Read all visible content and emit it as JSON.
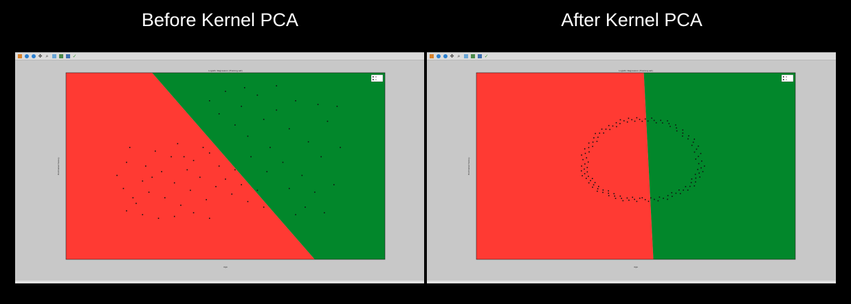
{
  "slide": {
    "left_title": "Before Kernel PCA",
    "right_title": "After Kernel PCA"
  },
  "windows": [
    {
      "toolbar_icons": [
        "home-icon",
        "back-icon",
        "forward-icon",
        "pan-icon",
        "zoom-icon",
        "subplots-icon",
        "configure-icon",
        "save-icon",
        "edit-icon"
      ]
    },
    {
      "toolbar_icons": [
        "home-icon",
        "back-icon",
        "forward-icon",
        "pan-icon",
        "zoom-icon",
        "subplots-icon",
        "configure-icon",
        "save-icon",
        "edit-icon"
      ]
    }
  ],
  "colors": {
    "red_region": "#ff3a33",
    "green_region": "#02872b",
    "points": "#111111",
    "window_bg": "#c8c8c8",
    "page_bg": "#000000"
  },
  "chart_data": [
    {
      "type": "scatter",
      "title": "Logistic Regression (Training set)",
      "xlabel": "Age",
      "ylabel": "Estimated Salary",
      "legend": {
        "placement": "top-right",
        "entries": [
          "0",
          "1"
        ]
      },
      "regions": {
        "boundary": "linear diagonal",
        "line": [
          [
            0.27,
            1.0
          ],
          [
            0.78,
            0.0
          ]
        ],
        "left_class": 0,
        "right_class": 1
      },
      "series": [
        {
          "name": "0",
          "points": [
            [
              0.16,
              0.45
            ],
            [
              0.18,
              0.38
            ],
            [
              0.19,
              0.52
            ],
            [
              0.2,
              0.6
            ],
            [
              0.22,
              0.3
            ],
            [
              0.24,
              0.42
            ],
            [
              0.25,
              0.5
            ],
            [
              0.26,
              0.36
            ],
            [
              0.28,
              0.58
            ],
            [
              0.3,
              0.47
            ],
            [
              0.31,
              0.33
            ],
            [
              0.33,
              0.55
            ],
            [
              0.34,
              0.41
            ],
            [
              0.35,
              0.62
            ],
            [
              0.36,
              0.29
            ],
            [
              0.38,
              0.48
            ],
            [
              0.39,
              0.37
            ],
            [
              0.4,
              0.53
            ],
            [
              0.42,
              0.44
            ],
            [
              0.44,
              0.32
            ],
            [
              0.45,
              0.57
            ],
            [
              0.47,
              0.39
            ],
            [
              0.48,
              0.5
            ],
            [
              0.5,
              0.43
            ],
            [
              0.52,
              0.35
            ],
            [
              0.53,
              0.48
            ],
            [
              0.55,
              0.4
            ],
            [
              0.57,
              0.31
            ],
            [
              0.6,
              0.37
            ],
            [
              0.62,
              0.28
            ],
            [
              0.19,
              0.26
            ],
            [
              0.24,
              0.24
            ],
            [
              0.29,
              0.22
            ],
            [
              0.34,
              0.23
            ],
            [
              0.4,
              0.25
            ],
            [
              0.45,
              0.22
            ],
            [
              0.21,
              0.33
            ],
            [
              0.27,
              0.44
            ],
            [
              0.37,
              0.55
            ],
            [
              0.43,
              0.6
            ]
          ]
        },
        {
          "name": "1",
          "points": [
            [
              0.45,
              0.85
            ],
            [
              0.48,
              0.78
            ],
            [
              0.5,
              0.9
            ],
            [
              0.53,
              0.72
            ],
            [
              0.55,
              0.82
            ],
            [
              0.57,
              0.66
            ],
            [
              0.6,
              0.88
            ],
            [
              0.62,
              0.75
            ],
            [
              0.64,
              0.6
            ],
            [
              0.66,
              0.8
            ],
            [
              0.68,
              0.52
            ],
            [
              0.7,
              0.7
            ],
            [
              0.72,
              0.85
            ],
            [
              0.74,
              0.45
            ],
            [
              0.76,
              0.63
            ],
            [
              0.78,
              0.36
            ],
            [
              0.8,
              0.55
            ],
            [
              0.82,
              0.74
            ],
            [
              0.84,
              0.4
            ],
            [
              0.86,
              0.6
            ],
            [
              0.58,
              0.55
            ],
            [
              0.63,
              0.47
            ],
            [
              0.7,
              0.38
            ],
            [
              0.75,
              0.28
            ],
            [
              0.81,
              0.25
            ],
            [
              0.56,
              0.92
            ],
            [
              0.66,
              0.93
            ],
            [
              0.79,
              0.83
            ],
            [
              0.85,
              0.82
            ],
            [
              0.72,
              0.24
            ]
          ]
        }
      ]
    },
    {
      "type": "scatter",
      "title": "Logistic Regression (Training set)",
      "xlabel": "Age",
      "ylabel": "Estimated Salary",
      "legend": {
        "placement": "top-right",
        "entries": [
          "0",
          "1"
        ]
      },
      "regions": {
        "boundary": "nearly vertical line",
        "line": [
          [
            0.525,
            1.0
          ],
          [
            0.555,
            0.0
          ]
        ],
        "left_class": 0,
        "right_class": 1
      },
      "series": [
        {
          "name": "0",
          "ring": {
            "cx": 0.52,
            "cy": 0.5,
            "rx": 0.17,
            "ry": 0.17,
            "ry_top": 0.24,
            "count": 70,
            "side": "left"
          }
        },
        {
          "name": "1",
          "ring": {
            "cx": 0.52,
            "cy": 0.5,
            "rx": 0.17,
            "ry": 0.17,
            "ry_top": 0.24,
            "count": 60,
            "side": "right"
          }
        }
      ]
    }
  ]
}
